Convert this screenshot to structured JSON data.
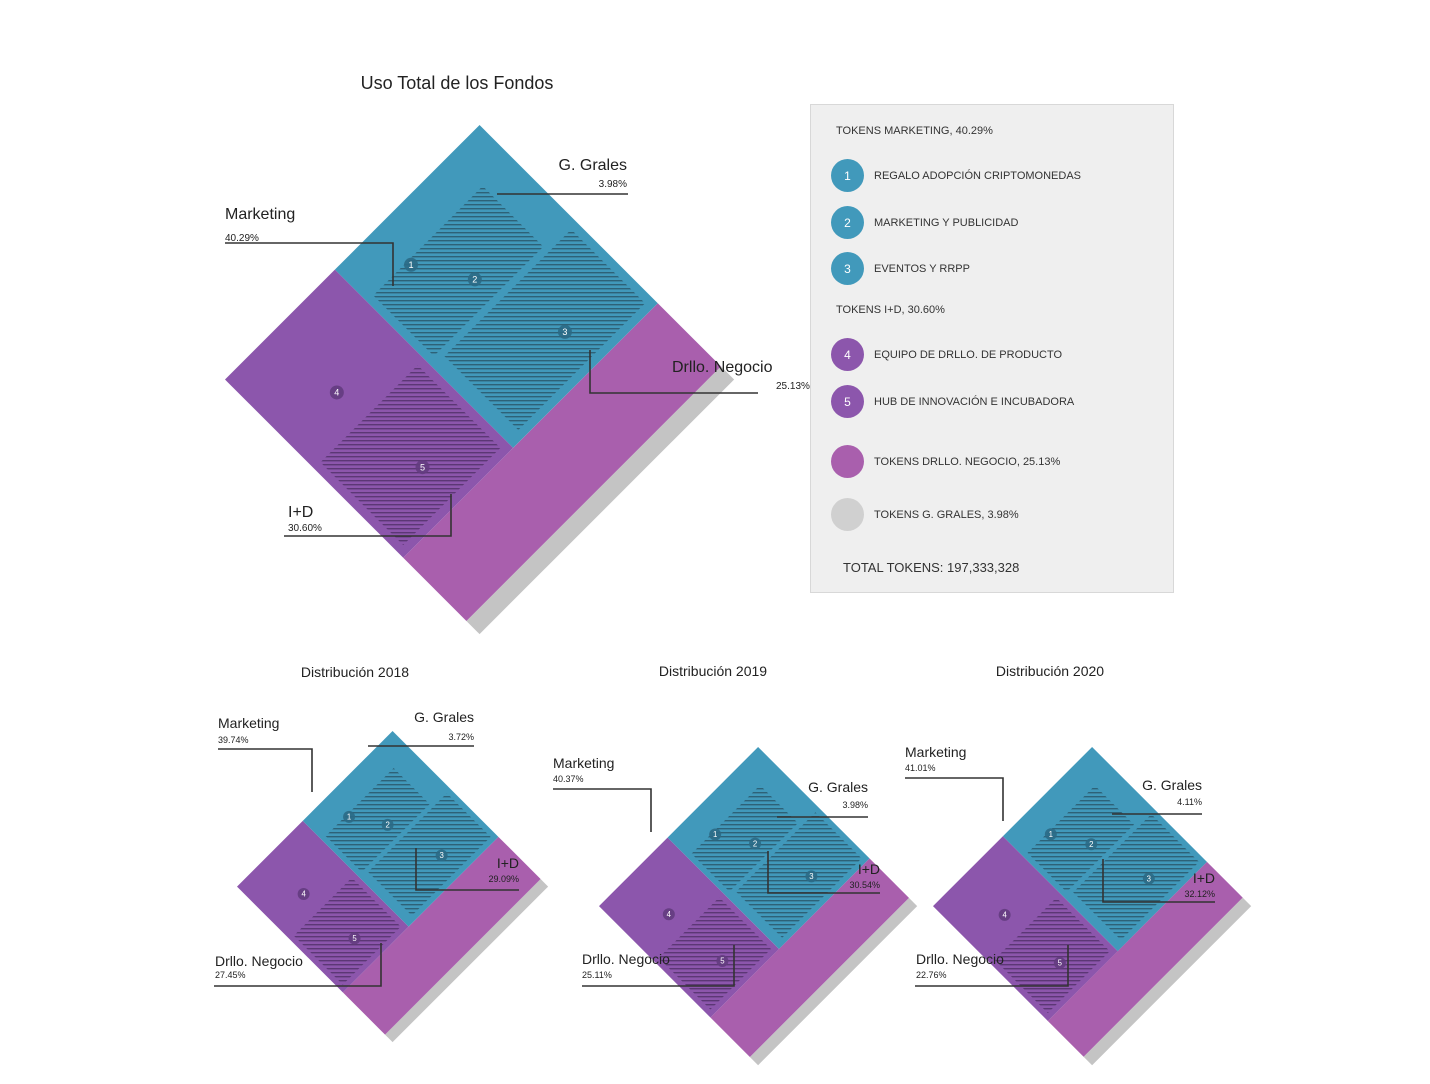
{
  "colors": {
    "marketing": "#4199bb",
    "id": "#8c56ac",
    "negocio": "#a95fad",
    "grales": "#c4c4c4",
    "hatch": "#2d6278",
    "hatch_id": "#5c3775",
    "badge_marketing": "#2b6a86",
    "badge_id": "#633c80",
    "leader": "#333333"
  },
  "legend": {
    "marketing_head": "TOKENS MARKETING, 40.29%",
    "items_marketing": [
      {
        "num": "1",
        "label": "REGALO ADOPCIÓN CRIPTOMONEDAS"
      },
      {
        "num": "2",
        "label": "MARKETING Y PUBLICIDAD"
      },
      {
        "num": "3",
        "label": "EVENTOS Y RRPP"
      }
    ],
    "id_head": "TOKENS I+D, 30.60%",
    "items_id": [
      {
        "num": "4",
        "label": "EQUIPO DE DRLLO. DE PRODUCTO"
      },
      {
        "num": "5",
        "label": "HUB DE INNOVACIÓN E INCUBADORA"
      }
    ],
    "negocio": "TOKENS DRLLO. NEGOCIO, 25.13%",
    "grales": "TOKENS G. GRALES, 3.98%",
    "total": "TOTAL TOKENS: 197,333,328"
  },
  "chart_data": [
    {
      "type": "treemap",
      "title": "Uso Total de los Fondos",
      "categories": [
        "Marketing",
        "I+D",
        "Drllo. Negocio",
        "G. Grales"
      ],
      "values": [
        40.29,
        30.6,
        25.13,
        3.98
      ],
      "value_labels": [
        "40.29%",
        "30.60%",
        "25.13%",
        "3.98%"
      ],
      "sub_labels": [
        "1",
        "2",
        "3",
        "4",
        "5"
      ]
    },
    {
      "type": "treemap",
      "title": "Distribución 2018",
      "categories": [
        "Marketing",
        "I+D",
        "Drllo. Negocio",
        "G. Grales"
      ],
      "values": [
        39.74,
        29.09,
        27.45,
        3.72
      ],
      "value_labels": [
        "39.74%",
        "29.09%",
        "27.45%",
        "3.72%"
      ],
      "sub_labels": [
        "1",
        "2",
        "3",
        "4",
        "5"
      ]
    },
    {
      "type": "treemap",
      "title": "Distribución 2019",
      "categories": [
        "Marketing",
        "I+D",
        "Drllo. Negocio",
        "G. Grales"
      ],
      "values": [
        40.37,
        30.54,
        25.11,
        3.98
      ],
      "value_labels": [
        "40.37%",
        "30.54%",
        "25.11%",
        "3.98%"
      ],
      "sub_labels": [
        "1",
        "2",
        "3",
        "4",
        "5"
      ]
    },
    {
      "type": "treemap",
      "title": "Distribución 2020",
      "categories": [
        "Marketing",
        "I+D",
        "Drllo. Negocio",
        "G. Grales"
      ],
      "values": [
        41.01,
        32.12,
        22.76,
        4.11
      ],
      "value_labels": [
        "41.01%",
        "32.12%",
        "22.76%",
        "4.11%"
      ],
      "sub_labels": [
        "1",
        "2",
        "3",
        "4",
        "5"
      ]
    }
  ]
}
